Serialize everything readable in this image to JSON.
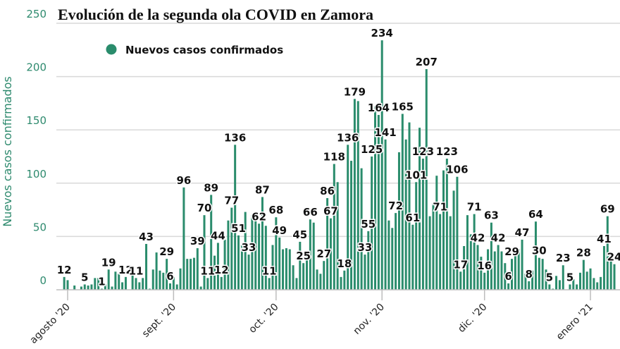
{
  "chart_data": {
    "type": "bar",
    "title": "Evolución de la segunda ola COVID en Zamora",
    "ylabel": "Nuevos casos confirmados",
    "xlabel": "",
    "ylim": [
      0,
      250
    ],
    "yticks": [
      "0",
      "50",
      "100",
      "150",
      "200",
      "250"
    ],
    "xticks": [
      {
        "date": "2020-08-01",
        "label": "agosto '20"
      },
      {
        "date": "2020-09-01",
        "label": "sept. '20"
      },
      {
        "date": "2020-10-01",
        "label": "oct. '20"
      },
      {
        "date": "2020-11-01",
        "label": "nov. '20"
      },
      {
        "date": "2020-12-01",
        "label": "dic. '20"
      },
      {
        "date": "2021-01-01",
        "label": "enero '21"
      }
    ],
    "grid": true,
    "legend": {
      "position": "top-left",
      "entries": [
        "Nuevos casos confirmados"
      ]
    },
    "colors": {
      "bar": "#2a8c6c",
      "axis_text": "#2e8a6e",
      "grid": "#d9d9d9"
    },
    "series": [
      {
        "name": "Nuevos casos confirmados",
        "by_month": [
          {
            "month": "2020-07",
            "first_day": 31,
            "values": [
              12
            ]
          },
          {
            "month": "2020-08",
            "first_day": 1,
            "values": [
              9,
              0,
              4,
              0,
              3,
              5,
              4,
              5,
              11,
              11,
              1,
              5,
              19,
              3,
              17,
              15,
              7,
              12,
              0,
              22,
              11,
              7,
              11,
              43,
              1,
              19,
              35,
              18,
              16,
              29,
              6
            ]
          },
          {
            "month": "2020-09",
            "first_day": 1,
            "values": [
              12,
              5,
              20,
              96,
              29,
              29,
              30,
              39,
              3,
              70,
              11,
              89,
              32,
              44,
              12,
              47,
              65,
              77,
              136,
              51,
              42,
              73,
              33,
              70,
              70,
              62,
              87,
              60,
              11,
              42
            ]
          },
          {
            "month": "2020-10",
            "first_day": 1,
            "values": [
              68,
              49,
              38,
              39,
              38,
              23,
              11,
              45,
              25,
              34,
              66,
              63,
              19,
              15,
              27,
              86,
              67,
              118,
              101,
              12,
              18,
              136,
              121,
              179,
              177,
              114,
              33,
              55,
              125,
              172,
              164
            ]
          },
          {
            "month": "2020-11",
            "first_day": 1,
            "values": [
              234,
              141,
              65,
              58,
              72,
              129,
              165,
              141,
              157,
              61,
              101,
              152,
              123,
              207,
              69,
              81,
              107,
              71,
              112,
              123,
              69,
              93,
              106,
              17,
              41,
              70,
              52,
              71,
              42,
              31
            ]
          },
          {
            "month": "2020-12",
            "first_day": 1,
            "values": [
              16,
              38,
              63,
              36,
              42,
              36,
              25,
              6,
              29,
              39,
              38,
              47,
              15,
              8,
              18,
              64,
              30,
              29,
              19,
              5,
              1,
              13,
              9,
              23,
              0,
              5,
              10,
              5,
              16,
              28,
              17
            ]
          },
          {
            "month": "2021-01",
            "first_day": 1,
            "values": [
              20,
              11,
              7,
              12,
              41,
              69,
              34,
              24
            ]
          }
        ]
      }
    ],
    "data_labels": [
      {
        "date": "2020-07-31",
        "text": "12"
      },
      {
        "date": "2020-08-06",
        "text": "5"
      },
      {
        "date": "2020-08-11",
        "text": "1"
      },
      {
        "date": "2020-08-13",
        "text": "19"
      },
      {
        "date": "2020-08-18",
        "text": "12"
      },
      {
        "date": "2020-08-21",
        "text": "11"
      },
      {
        "date": "2020-08-24",
        "text": "43"
      },
      {
        "date": "2020-08-30",
        "text": "29"
      },
      {
        "date": "2020-08-31",
        "text": "6"
      },
      {
        "date": "2020-09-04",
        "text": "96"
      },
      {
        "date": "2020-09-08",
        "text": "39"
      },
      {
        "date": "2020-09-10",
        "text": "70"
      },
      {
        "date": "2020-09-11",
        "text": "11"
      },
      {
        "date": "2020-09-12",
        "text": "89"
      },
      {
        "date": "2020-09-14",
        "text": "44"
      },
      {
        "date": "2020-09-15",
        "text": "12"
      },
      {
        "date": "2020-09-18",
        "text": "77"
      },
      {
        "date": "2020-09-19",
        "text": "136"
      },
      {
        "date": "2020-09-20",
        "text": "51"
      },
      {
        "date": "2020-09-23",
        "text": "33"
      },
      {
        "date": "2020-09-26",
        "text": "62"
      },
      {
        "date": "2020-09-27",
        "text": "87"
      },
      {
        "date": "2020-09-29",
        "text": "11"
      },
      {
        "date": "2020-10-01",
        "text": "68"
      },
      {
        "date": "2020-10-02",
        "text": "49"
      },
      {
        "date": "2020-10-08",
        "text": "45"
      },
      {
        "date": "2020-10-09",
        "text": "25"
      },
      {
        "date": "2020-10-11",
        "text": "66"
      },
      {
        "date": "2020-10-15",
        "text": "27"
      },
      {
        "date": "2020-10-16",
        "text": "86"
      },
      {
        "date": "2020-10-17",
        "text": "67"
      },
      {
        "date": "2020-10-18",
        "text": "118"
      },
      {
        "date": "2020-10-21",
        "text": "18"
      },
      {
        "date": "2020-10-22",
        "text": "136"
      },
      {
        "date": "2020-10-24",
        "text": "179"
      },
      {
        "date": "2020-10-27",
        "text": "33"
      },
      {
        "date": "2020-10-28",
        "text": "55"
      },
      {
        "date": "2020-10-29",
        "text": "125"
      },
      {
        "date": "2020-10-31",
        "text": "164"
      },
      {
        "date": "2020-11-01",
        "text": "234"
      },
      {
        "date": "2020-11-02",
        "text": "141"
      },
      {
        "date": "2020-11-05",
        "text": "72"
      },
      {
        "date": "2020-11-07",
        "text": "165"
      },
      {
        "date": "2020-11-10",
        "text": "61"
      },
      {
        "date": "2020-11-11",
        "text": "101"
      },
      {
        "date": "2020-11-13",
        "text": "123"
      },
      {
        "date": "2020-11-14",
        "text": "207"
      },
      {
        "date": "2020-11-18",
        "text": "71"
      },
      {
        "date": "2020-11-20",
        "text": "123"
      },
      {
        "date": "2020-11-23",
        "text": "106"
      },
      {
        "date": "2020-11-24",
        "text": "17"
      },
      {
        "date": "2020-11-28",
        "text": "71"
      },
      {
        "date": "2020-11-29",
        "text": "42"
      },
      {
        "date": "2020-12-01",
        "text": "16"
      },
      {
        "date": "2020-12-03",
        "text": "63"
      },
      {
        "date": "2020-12-05",
        "text": "42"
      },
      {
        "date": "2020-12-08",
        "text": "6"
      },
      {
        "date": "2020-12-09",
        "text": "29"
      },
      {
        "date": "2020-12-12",
        "text": "47"
      },
      {
        "date": "2020-12-14",
        "text": "8"
      },
      {
        "date": "2020-12-16",
        "text": "64"
      },
      {
        "date": "2020-12-17",
        "text": "30"
      },
      {
        "date": "2020-12-20",
        "text": "5"
      },
      {
        "date": "2020-12-24",
        "text": "23"
      },
      {
        "date": "2020-12-26",
        "text": "5"
      },
      {
        "date": "2020-12-30",
        "text": "28"
      },
      {
        "date": "2021-01-05",
        "text": "41"
      },
      {
        "date": "2021-01-06",
        "text": "69"
      },
      {
        "date": "2021-01-08",
        "text": "24"
      }
    ]
  }
}
